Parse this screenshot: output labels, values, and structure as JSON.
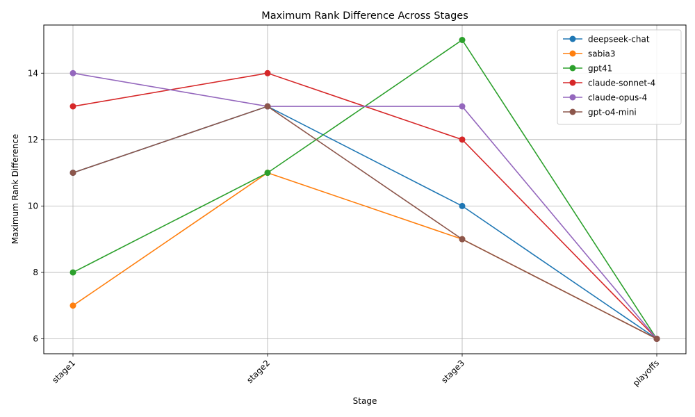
{
  "chart_data": {
    "type": "line",
    "title": "Maximum Rank Difference Across Stages",
    "xlabel": "Stage",
    "ylabel": "Maximum Rank Difference",
    "categories": [
      "stage1",
      "stage2",
      "stage3",
      "playoffs"
    ],
    "ylim": [
      5.55,
      15.45
    ],
    "yticks": [
      6,
      8,
      10,
      12,
      14
    ],
    "grid": true,
    "legend_position": "top-right",
    "marker": "circle",
    "series": [
      {
        "name": "deepseek-chat",
        "color": "#1f77b4",
        "values": [
          11,
          13,
          10,
          6
        ]
      },
      {
        "name": "sabia3",
        "color": "#ff7f0e",
        "values": [
          7,
          11,
          9,
          6
        ]
      },
      {
        "name": "gpt41",
        "color": "#2ca02c",
        "values": [
          8,
          11,
          15,
          6
        ]
      },
      {
        "name": "claude-sonnet-4",
        "color": "#d62728",
        "values": [
          13,
          14,
          12,
          6
        ]
      },
      {
        "name": "claude-opus-4",
        "color": "#9467bd",
        "values": [
          14,
          13,
          13,
          6
        ]
      },
      {
        "name": "gpt-o4-mini",
        "color": "#8c564b",
        "values": [
          11,
          13,
          9,
          6
        ]
      }
    ]
  }
}
